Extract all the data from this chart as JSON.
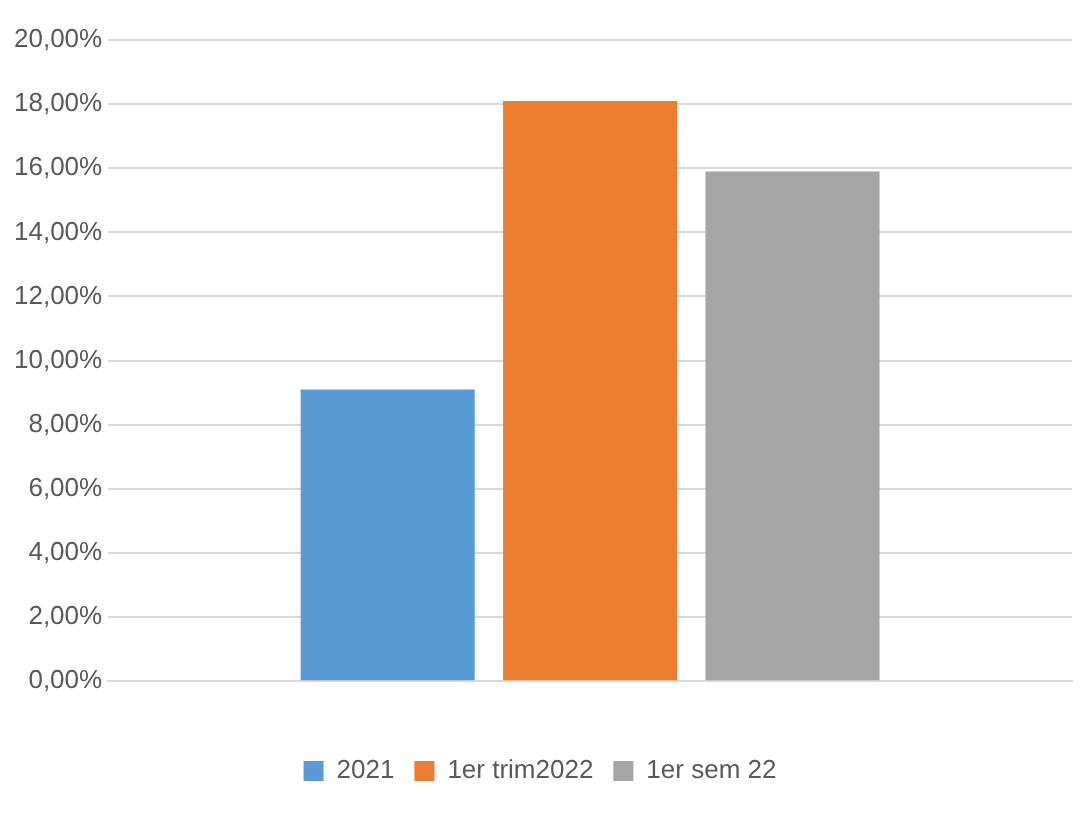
{
  "chart_data": {
    "type": "bar",
    "categories": [
      null
    ],
    "series": [
      {
        "name": "2021",
        "color": "#5b9bd5",
        "values": [
          9.1
        ]
      },
      {
        "name": "1er trim2022",
        "color": "#ed7d31",
        "values": [
          18.1
        ]
      },
      {
        "name": "1er sem 22",
        "color": "#a5a5a5",
        "values": [
          15.9
        ]
      }
    ],
    "ylim": [
      0,
      20
    ],
    "yticks": [
      {
        "value": 0,
        "label": "0,00%"
      },
      {
        "value": 2,
        "label": "2,00%"
      },
      {
        "value": 4,
        "label": "4,00%"
      },
      {
        "value": 6,
        "label": "6,00%"
      },
      {
        "value": 8,
        "label": "8,00%"
      },
      {
        "value": 10,
        "label": "10,00%"
      },
      {
        "value": 12,
        "label": "12,00%"
      },
      {
        "value": 14,
        "label": "14,00%"
      },
      {
        "value": 16,
        "label": "16,00%"
      },
      {
        "value": 18,
        "label": "18,00%"
      },
      {
        "value": 20,
        "label": "20,00%"
      }
    ],
    "grid": "y",
    "legend": "bottom"
  }
}
